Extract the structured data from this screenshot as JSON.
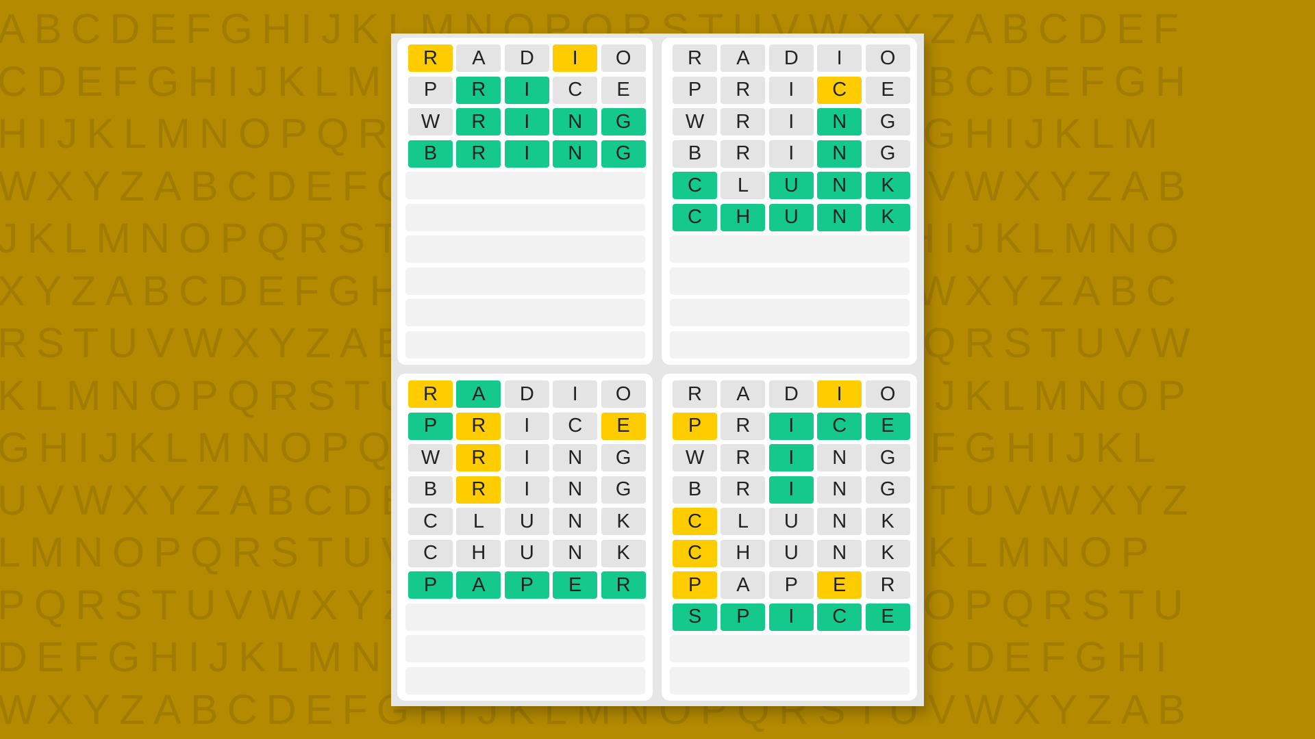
{
  "background": {
    "rows": [
      "ABCDEFGHIJKLMNOPQRSTUVWXYZABCDEF",
      "CDEFGHIJKLMNOPQRSTUVWXYZABCDEFGH",
      "HIJKLMNOPQRSTUVWXYZABCDEFGHIJKLM",
      "WXYZABCDEFGHIJKLMNOPQRSTUVWXYZAB",
      "JKLMNOPQRSTUVWXYZABCDEFGHIJKLMNO",
      "XYZABCDEFGHIJKLMNOPQRSTUVWXYZABC",
      "RSTUVWXYZABCDEFGHIJKLMNOPQRSTUVW",
      "KLMNOPQRSTUVWXYZABCDEFGHIJKLMNOP",
      "GHIJKLMNOPQRSTUVWXYZABCDEFGHIJKL",
      "UVWXYZABCDEFGHIJKLMNOPQRSTUVWXYZ",
      "LMNOPQRSTUVWXYZABCDEFGHIJKLMNOP",
      "PQRSTUVWXYZABCDEFGHIJKLMNOPQRSTU",
      "DEFGHIJKLMNOPQRSTUVWXYZABCDEFGHI",
      "WXYZABCDEFGHIJKLMNOPQRSTUVWXYZAB"
    ]
  },
  "colors": {
    "g": "#14c98b",
    "y": "#ffcc00",
    "n": "#e4e4e4"
  },
  "boards": [
    {
      "rows": [
        {
          "letters": [
            "R",
            "A",
            "D",
            "I",
            "O"
          ],
          "states": "ynnyn"
        },
        {
          "letters": [
            "P",
            "R",
            "I",
            "C",
            "E"
          ],
          "states": "nggnn"
        },
        {
          "letters": [
            "W",
            "R",
            "I",
            "N",
            "G"
          ],
          "states": "ngggg"
        },
        {
          "letters": [
            "B",
            "R",
            "I",
            "N",
            "G"
          ],
          "states": "ggggg"
        }
      ]
    },
    {
      "rows": [
        {
          "letters": [
            "R",
            "A",
            "D",
            "I",
            "O"
          ],
          "states": "nnnnn"
        },
        {
          "letters": [
            "P",
            "R",
            "I",
            "C",
            "E"
          ],
          "states": "nnnyn"
        },
        {
          "letters": [
            "W",
            "R",
            "I",
            "N",
            "G"
          ],
          "states": "nnngn"
        },
        {
          "letters": [
            "B",
            "R",
            "I",
            "N",
            "G"
          ],
          "states": "nnngn"
        },
        {
          "letters": [
            "C",
            "L",
            "U",
            "N",
            "K"
          ],
          "states": "gnggg"
        },
        {
          "letters": [
            "C",
            "H",
            "U",
            "N",
            "K"
          ],
          "states": "ggggg"
        }
      ]
    },
    {
      "rows": [
        {
          "letters": [
            "R",
            "A",
            "D",
            "I",
            "O"
          ],
          "states": "ygnnn"
        },
        {
          "letters": [
            "P",
            "R",
            "I",
            "C",
            "E"
          ],
          "states": "gynny"
        },
        {
          "letters": [
            "W",
            "R",
            "I",
            "N",
            "G"
          ],
          "states": "nynnn"
        },
        {
          "letters": [
            "B",
            "R",
            "I",
            "N",
            "G"
          ],
          "states": "nynnn"
        },
        {
          "letters": [
            "C",
            "L",
            "U",
            "N",
            "K"
          ],
          "states": "nnnnn"
        },
        {
          "letters": [
            "C",
            "H",
            "U",
            "N",
            "K"
          ],
          "states": "nnnnn"
        },
        {
          "letters": [
            "P",
            "A",
            "P",
            "E",
            "R"
          ],
          "states": "ggggg"
        }
      ]
    },
    {
      "rows": [
        {
          "letters": [
            "R",
            "A",
            "D",
            "I",
            "O"
          ],
          "states": "nnnyn"
        },
        {
          "letters": [
            "P",
            "R",
            "I",
            "C",
            "E"
          ],
          "states": "ynggg"
        },
        {
          "letters": [
            "W",
            "R",
            "I",
            "N",
            "G"
          ],
          "states": "nngnn"
        },
        {
          "letters": [
            "B",
            "R",
            "I",
            "N",
            "G"
          ],
          "states": "nngnn"
        },
        {
          "letters": [
            "C",
            "L",
            "U",
            "N",
            "K"
          ],
          "states": "ynnnn"
        },
        {
          "letters": [
            "C",
            "H",
            "U",
            "N",
            "K"
          ],
          "states": "ynnnn"
        },
        {
          "letters": [
            "P",
            "A",
            "P",
            "E",
            "R"
          ],
          "states": "ynnyn"
        },
        {
          "letters": [
            "S",
            "P",
            "I",
            "C",
            "E"
          ],
          "states": "ggggg"
        }
      ]
    }
  ]
}
